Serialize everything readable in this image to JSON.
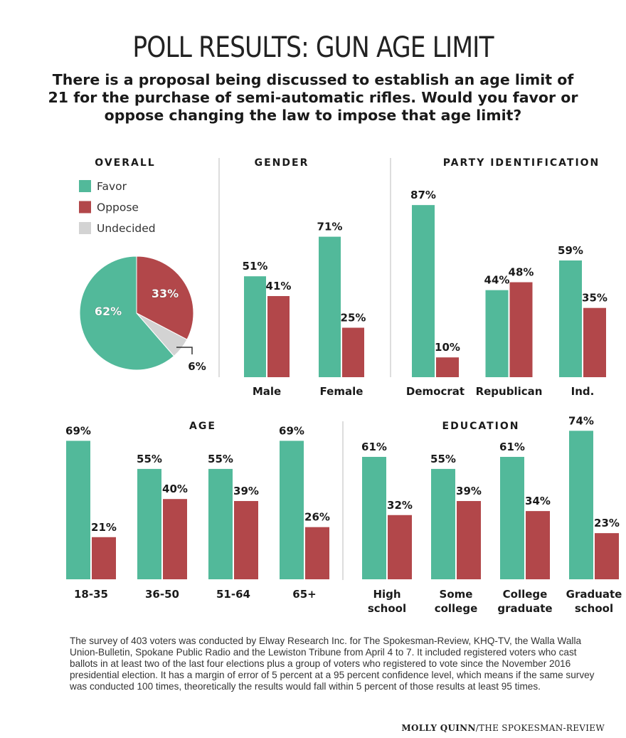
{
  "title": "POLL RESULTS: GUN AGE LIMIT",
  "question": "There is a proposal being discussed to establish an age limit of 21 for the purchase of semi-automatic rifles. Would you favor or oppose changing the law to impose that age limit?",
  "colors": {
    "favor": "#52b99a",
    "oppose": "#b2474a",
    "undecided": "#d3d3d3"
  },
  "legend": [
    "Favor",
    "Oppose",
    "Undecided"
  ],
  "chart_data": [
    {
      "type": "pie",
      "title": "OVERALL",
      "slices": [
        {
          "label": "Favor",
          "value": 62,
          "text": "62%"
        },
        {
          "label": "Oppose",
          "value": 33,
          "text": "33%"
        },
        {
          "label": "Undecided",
          "value": 6,
          "text": "6%"
        }
      ]
    },
    {
      "type": "bar",
      "title": "GENDER",
      "categories": [
        "Male",
        "Female"
      ],
      "series": [
        {
          "name": "Favor",
          "values": [
            51,
            71
          ]
        },
        {
          "name": "Oppose",
          "values": [
            41,
            25
          ]
        }
      ]
    },
    {
      "type": "bar",
      "title": "PARTY IDENTIFICATION",
      "categories": [
        "Democrat",
        "Republican",
        "Ind."
      ],
      "series": [
        {
          "name": "Favor",
          "values": [
            87,
            44,
            59
          ]
        },
        {
          "name": "Oppose",
          "values": [
            10,
            48,
            35
          ]
        }
      ]
    },
    {
      "type": "bar",
      "title": "AGE",
      "categories": [
        "18-35",
        "36-50",
        "51-64",
        "65+"
      ],
      "series": [
        {
          "name": "Favor",
          "values": [
            69,
            55,
            55,
            69
          ]
        },
        {
          "name": "Oppose",
          "values": [
            21,
            40,
            39,
            26
          ]
        }
      ]
    },
    {
      "type": "bar",
      "title": "EDUCATION",
      "categories": [
        "High\nschool",
        "Some\ncollege",
        "College\ngraduate",
        "Graduate\nschool"
      ],
      "series": [
        {
          "name": "Favor",
          "values": [
            61,
            55,
            61,
            74
          ]
        },
        {
          "name": "Oppose",
          "values": [
            32,
            39,
            34,
            23
          ]
        }
      ]
    }
  ],
  "footnote": "The survey of 403 voters was conducted by Elway Research Inc. for The Spokesman-Review, KHQ-TV, the Walla Walla Union-Bulletin, Spokane Public Radio and the Lewiston Tribune from April 4 to 7. It included registered voters who cast ballots in at least two of the last four elections plus a group of voters who registered to vote since the November 2016 presidential election. It has a margin of error of 5 percent at a 95 percent confidence level, which means if the same survey was conducted 100 times, theoretically the results would fall within 5 percent of those results at least 95 times.",
  "credit": {
    "author": "MOLLY QUINN",
    "source": "/THE SPOKESMAN-REVIEW"
  }
}
